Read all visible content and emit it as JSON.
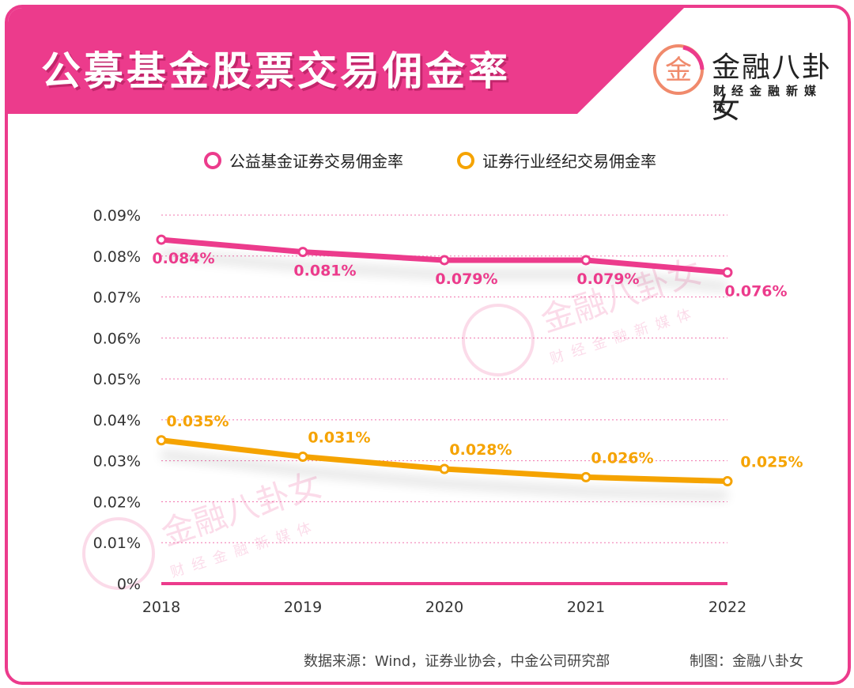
{
  "header": {
    "title": "公募基金股票交易佣金率",
    "brand_name": "金融八卦女",
    "brand_sub": "财经金融新媒体",
    "brand_logo_char": "金",
    "watermark_name": "金融八卦女",
    "watermark_sub": "财经金融新媒体"
  },
  "colors": {
    "accent": "#ec3b8c",
    "series1": "#ec3b8c",
    "series2": "#f5a300"
  },
  "chart_data": {
    "type": "line",
    "x": [
      "2018",
      "2019",
      "2020",
      "2021",
      "2022"
    ],
    "yticks": [
      "0.09%",
      "0.08%",
      "0.07%",
      "0.06%",
      "0.05%",
      "0.04%",
      "0.03%",
      "0.02%",
      "0.01%",
      "0%"
    ],
    "ylim": [
      0,
      0.09
    ],
    "grid": true,
    "legend_position": "top",
    "series": [
      {
        "name": "公益基金证券交易佣金率",
        "values": [
          0.084,
          0.081,
          0.079,
          0.079,
          0.076
        ],
        "labels": [
          "0.084%",
          "0.081%",
          "0.079%",
          "0.079%",
          "0.076%"
        ]
      },
      {
        "name": "证券行业经纪交易佣金率",
        "values": [
          0.035,
          0.031,
          0.028,
          0.026,
          0.025
        ],
        "labels": [
          "0.035%",
          "0.031%",
          "0.028%",
          "0.026%",
          "0.025%"
        ]
      }
    ]
  },
  "footer": {
    "source": "数据来源：Wind，证券业协会，中金公司研究部",
    "credit": "制图：金融八卦女"
  }
}
